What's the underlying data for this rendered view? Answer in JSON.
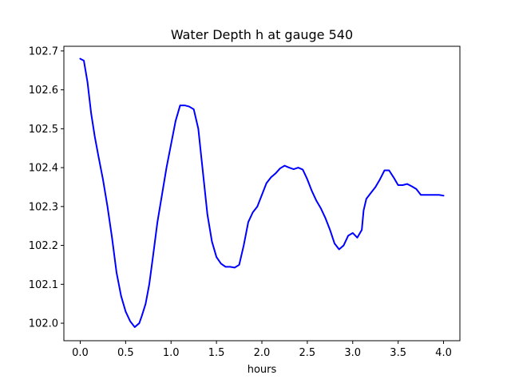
{
  "chart_data": {
    "type": "line",
    "title": "Water Depth h at gauge 540",
    "xlabel": "hours",
    "ylabel": "",
    "xlim": [
      -0.18,
      4.18
    ],
    "ylim": [
      101.955,
      102.712
    ],
    "xticks": [
      0.0,
      0.5,
      1.0,
      1.5,
      2.0,
      2.5,
      3.0,
      3.5,
      4.0
    ],
    "xtick_labels": [
      "0.0",
      "0.5",
      "1.0",
      "1.5",
      "2.0",
      "2.5",
      "3.0",
      "3.5",
      "4.0"
    ],
    "yticks": [
      102.0,
      102.1,
      102.2,
      102.3,
      102.4,
      102.5,
      102.6,
      102.7
    ],
    "ytick_labels": [
      "102.0",
      "102.1",
      "102.2",
      "102.3",
      "102.4",
      "102.5",
      "102.6",
      "102.7"
    ],
    "grid": false,
    "series": [
      {
        "color": "#0000ff",
        "x": [
          0.0,
          0.04,
          0.08,
          0.12,
          0.16,
          0.2,
          0.25,
          0.3,
          0.35,
          0.4,
          0.45,
          0.5,
          0.55,
          0.6,
          0.65,
          0.68,
          0.72,
          0.76,
          0.8,
          0.85,
          0.9,
          0.95,
          1.0,
          1.05,
          1.1,
          1.15,
          1.2,
          1.25,
          1.3,
          1.35,
          1.4,
          1.45,
          1.5,
          1.55,
          1.6,
          1.65,
          1.7,
          1.75,
          1.8,
          1.85,
          1.9,
          1.95,
          2.0,
          2.05,
          2.1,
          2.15,
          2.2,
          2.25,
          2.3,
          2.35,
          2.4,
          2.45,
          2.5,
          2.55,
          2.6,
          2.65,
          2.7,
          2.75,
          2.8,
          2.85,
          2.9,
          2.95,
          3.0,
          3.05,
          3.1,
          3.12,
          3.15,
          3.2,
          3.25,
          3.3,
          3.35,
          3.4,
          3.45,
          3.5,
          3.55,
          3.6,
          3.65,
          3.7,
          3.75,
          3.8,
          3.85,
          3.9,
          3.95,
          4.0
        ],
        "y": [
          102.68,
          102.675,
          102.62,
          102.54,
          102.48,
          102.43,
          102.37,
          102.3,
          102.22,
          102.13,
          102.07,
          102.03,
          102.005,
          101.99,
          102.0,
          102.02,
          102.05,
          102.1,
          102.17,
          102.26,
          102.33,
          102.4,
          102.46,
          102.52,
          102.56,
          102.56,
          102.557,
          102.55,
          102.5,
          102.39,
          102.28,
          102.21,
          102.17,
          102.153,
          102.145,
          102.145,
          102.143,
          102.15,
          102.2,
          102.26,
          102.285,
          102.3,
          102.33,
          102.36,
          102.375,
          102.385,
          102.398,
          102.405,
          102.4,
          102.396,
          102.4,
          102.395,
          102.37,
          102.34,
          102.315,
          102.295,
          102.27,
          102.24,
          102.205,
          102.19,
          102.2,
          102.225,
          102.232,
          102.22,
          102.24,
          102.29,
          102.32,
          102.335,
          102.35,
          102.37,
          102.393,
          102.393,
          102.375,
          102.355,
          102.355,
          102.358,
          102.352,
          102.345,
          102.33,
          102.33,
          102.33,
          102.33,
          102.33,
          102.328
        ]
      }
    ]
  }
}
